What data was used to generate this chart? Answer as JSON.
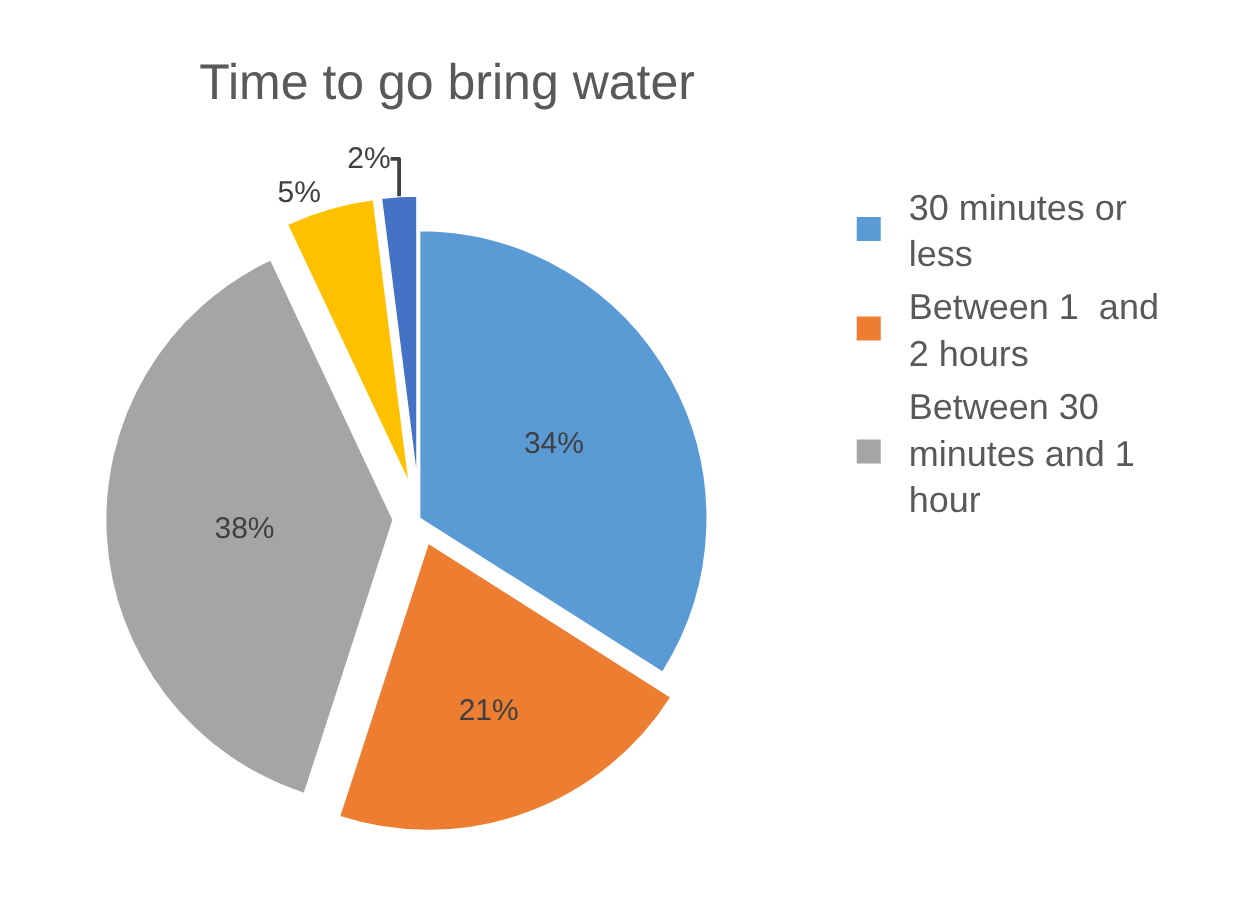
{
  "chart_data": {
    "type": "pie",
    "title": "Time to go bring water",
    "categories": [
      "30 minutes or less",
      "Between 1  and 2 hours",
      "Between 30 minutes and 1 hour",
      null,
      null
    ],
    "values": [
      34,
      21,
      38,
      5,
      2
    ],
    "value_labels": [
      "34%",
      "21%",
      "38%",
      "5%",
      "2%"
    ],
    "colors": [
      "#5b9bd5",
      "#ed7d31",
      "#a5a5a5",
      "#ffc000",
      "#4472c4"
    ],
    "legend": "right"
  }
}
